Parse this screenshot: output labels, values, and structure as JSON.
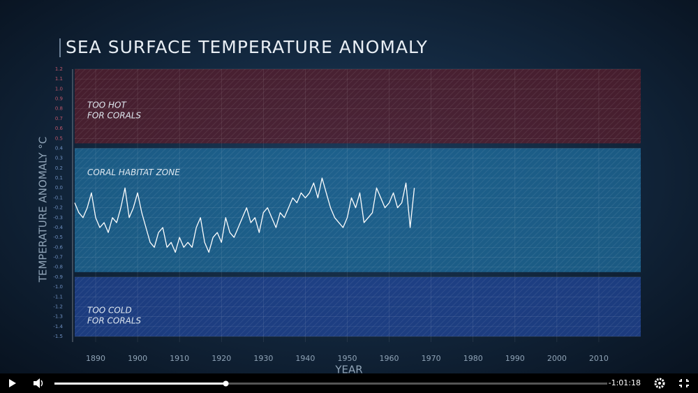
{
  "chart_data": {
    "type": "line",
    "title": "SEA SURFACE TEMPERATURE ANOMALY",
    "x_label": "YEAR",
    "y_label": "TEMPERATURE ANOMALY °C",
    "xlim": [
      1885,
      2020
    ],
    "xticks": [
      1890,
      1900,
      1910,
      1920,
      1930,
      1940,
      1950,
      1960,
      1970,
      1980,
      1990,
      2000,
      2010
    ],
    "ylim": [
      -1.5,
      1.2
    ],
    "yticks": [
      -1.5,
      -1.4,
      -1.3,
      -1.2,
      -1.1,
      {
        "value": -1,
        "label": "-1.0"
      },
      -0.9,
      -0.8,
      -0.7,
      -0.6,
      -0.5,
      -0.4,
      -0.3,
      -0.2,
      -0.1,
      {
        "value": 0,
        "label": "0.0"
      },
      0.1,
      0.2,
      0.3,
      0.4,
      0.5,
      0.6,
      0.7,
      0.8,
      0.9,
      {
        "value": 1,
        "label": "1.0"
      },
      1.1,
      1.2
    ],
    "grid": true,
    "color": "#ffffff",
    "zones": [
      {
        "lines": [
          "TOO HOT",
          "FOR CORALS"
        ],
        "from": 0.45,
        "to": 1.2,
        "color": "#5a1e2c"
      },
      {
        "lines": [
          "CORAL HABITAT ZONE"
        ],
        "from": -0.85,
        "to": 0.4,
        "color": "#1f6e9e"
      },
      {
        "lines": [
          "TOO COLD",
          "FOR CORALS"
        ],
        "from": -1.5,
        "to": -0.9,
        "color": "#22479a"
      }
    ],
    "x": [
      1885,
      1886,
      1887,
      1888,
      1889,
      1890,
      1891,
      1892,
      1893,
      1894,
      1895,
      1896,
      1897,
      1898,
      1899,
      1900,
      1901,
      1902,
      1903,
      1904,
      1905,
      1906,
      1907,
      1908,
      1909,
      1910,
      1911,
      1912,
      1913,
      1914,
      1915,
      1916,
      1917,
      1918,
      1919,
      1920,
      1921,
      1922,
      1923,
      1924,
      1925,
      1926,
      1927,
      1928,
      1929,
      1930,
      1931,
      1932,
      1933,
      1934,
      1935,
      1936,
      1937,
      1938,
      1939,
      1940,
      1941,
      1942,
      1943,
      1944,
      1945,
      1946,
      1947,
      1948,
      1949,
      1950,
      1951,
      1952,
      1953,
      1954,
      1955,
      1956,
      1957,
      1958,
      1959,
      1960,
      1961,
      1962,
      1963,
      1964,
      1965,
      1966
    ],
    "values": [
      -0.15,
      -0.25,
      -0.3,
      -0.2,
      -0.05,
      -0.3,
      -0.4,
      -0.35,
      -0.45,
      -0.3,
      -0.35,
      -0.2,
      0.0,
      -0.3,
      -0.2,
      -0.05,
      -0.25,
      -0.4,
      -0.55,
      -0.6,
      -0.45,
      -0.4,
      -0.6,
      -0.55,
      -0.65,
      -0.5,
      -0.6,
      -0.55,
      -0.6,
      -0.4,
      -0.3,
      -0.55,
      -0.65,
      -0.5,
      -0.45,
      -0.55,
      -0.3,
      -0.45,
      -0.5,
      -0.4,
      -0.3,
      -0.2,
      -0.35,
      -0.3,
      -0.45,
      -0.25,
      -0.2,
      -0.3,
      -0.4,
      -0.25,
      -0.3,
      -0.2,
      -0.1,
      -0.15,
      -0.05,
      -0.1,
      -0.05,
      0.05,
      -0.1,
      0.1,
      -0.05,
      -0.2,
      -0.3,
      -0.35,
      -0.4,
      -0.3,
      -0.1,
      -0.2,
      -0.05,
      -0.35,
      -0.3,
      -0.25,
      0.0,
      -0.1,
      -0.2,
      -0.15,
      -0.05,
      -0.2,
      -0.15,
      0.05,
      -0.4,
      0.0
    ]
  },
  "player": {
    "time_remaining": "-1:01:18",
    "progress": 0.31
  }
}
